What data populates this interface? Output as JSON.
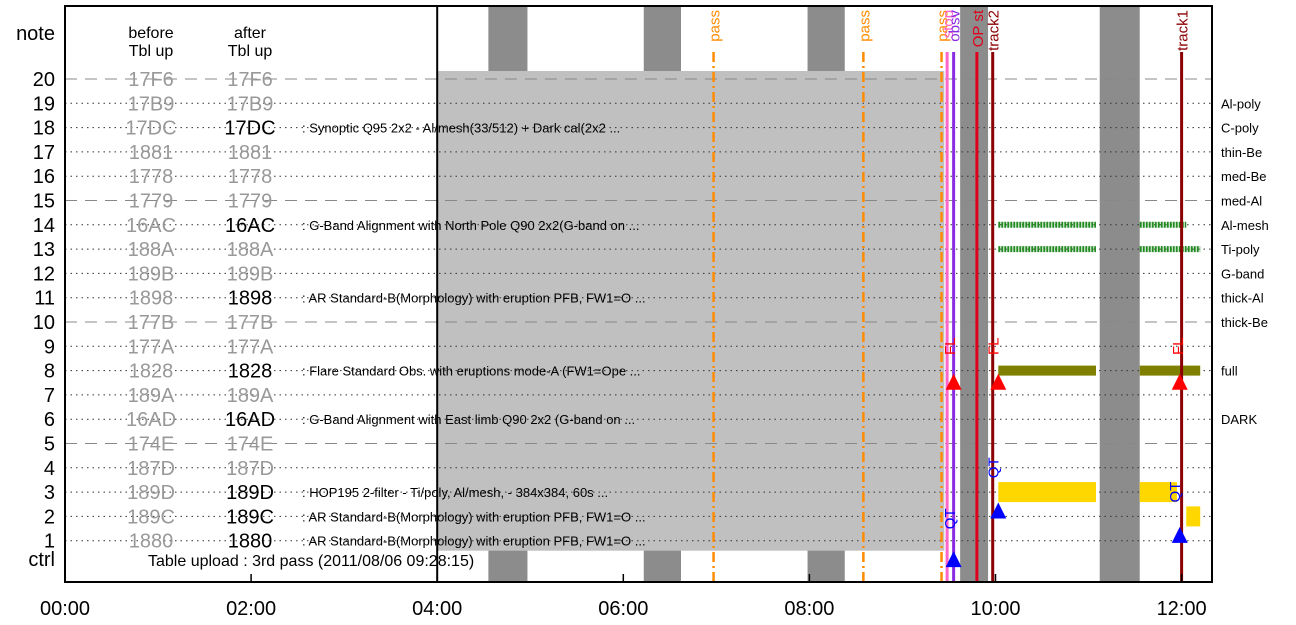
{
  "chart_data": {
    "type": "timeline",
    "title": "",
    "y_axis_label": "note",
    "col_headers": {
      "before": [
        "before",
        "Tbl up"
      ],
      "after": [
        "after",
        "Tbl up"
      ]
    },
    "x_tick_labels": [
      "00:00",
      "02:00",
      "04:00",
      "06:00",
      "08:00",
      "10:00",
      "12:00"
    ],
    "x_range_hours": [
      0,
      12.2
    ],
    "y_range": [
      0,
      21.5
    ],
    "grid_dashed_rows": [
      0,
      5,
      10,
      15,
      20
    ],
    "rows": [
      {
        "note": "20",
        "before": "17F6",
        "after": "17F6",
        "after_active": false,
        "desc": ""
      },
      {
        "note": "19",
        "before": "17B9",
        "after": "17B9",
        "after_active": false,
        "desc": ""
      },
      {
        "note": "18",
        "before": "17DC",
        "after": "17DC",
        "after_active": true,
        "desc": ": Synoptic Q95 2x2 - Al/mesh(33/512) + Dark cal(2x2 ..."
      },
      {
        "note": "17",
        "before": "1881",
        "after": "1881",
        "after_active": false,
        "desc": ""
      },
      {
        "note": "16",
        "before": "1778",
        "after": "1778",
        "after_active": false,
        "desc": ""
      },
      {
        "note": "15",
        "before": "1779",
        "after": "1779",
        "after_active": false,
        "desc": ""
      },
      {
        "note": "14",
        "before": "16AC",
        "after": "16AC",
        "after_active": true,
        "desc": ": G-Band Alignment with North Pole Q90 2x2(G-band on ..."
      },
      {
        "note": "13",
        "before": "188A",
        "after": "188A",
        "after_active": false,
        "desc": ""
      },
      {
        "note": "12",
        "before": "189B",
        "after": "189B",
        "after_active": false,
        "desc": ""
      },
      {
        "note": "11",
        "before": "1898",
        "after": "1898",
        "after_active": true,
        "desc": ": AR Standard-B(Morphology) with eruption PFB, FW1=O ..."
      },
      {
        "note": "10",
        "before": "177B",
        "after": "177B",
        "after_active": false,
        "desc": ""
      },
      {
        "note": "9",
        "before": "177A",
        "after": "177A",
        "after_active": false,
        "desc": ""
      },
      {
        "note": "8",
        "before": "1828",
        "after": "1828",
        "after_active": true,
        "desc": ": Flare Standard Obs. with eruptions mode-A (FW1=Ope ..."
      },
      {
        "note": "7",
        "before": "189A",
        "after": "189A",
        "after_active": false,
        "desc": ""
      },
      {
        "note": "6",
        "before": "16AD",
        "after": "16AD",
        "after_active": true,
        "desc": ": G-Band Alignment with East limb Q90 2x2 (G-band on ..."
      },
      {
        "note": "5",
        "before": "174E",
        "after": "174E",
        "after_active": false,
        "desc": ""
      },
      {
        "note": "4",
        "before": "187D",
        "after": "187D",
        "after_active": false,
        "desc": ""
      },
      {
        "note": "3",
        "before": "189D",
        "after": "189D",
        "after_active": true,
        "desc": ": HOP195 2-filter - Ti/poly, Al/mesh, - 384x384, 60s ..."
      },
      {
        "note": "2",
        "before": "189C",
        "after": "189C",
        "after_active": true,
        "desc": ": AR Standard-B(Morphology) with eruption PFB, FW1=O ..."
      },
      {
        "note": "1",
        "before": "1880",
        "after": "1880",
        "after_active": true,
        "desc": ": AR Standard-B(Morphology) with eruption PFB, FW1=O ..."
      }
    ],
    "ctrl_label": "ctrl",
    "ctrl_text": "Table upload : 3rd pass (2011/08/06 09:28:15)",
    "upload_shade_hours": [
      4.0,
      9.45
    ],
    "shade_bands_hours": [
      [
        4.55,
        4.97
      ],
      [
        6.22,
        6.62
      ],
      [
        7.98,
        8.38
      ],
      [
        9.62,
        9.92
      ],
      [
        11.12,
        11.55
      ]
    ],
    "vertical_markers": [
      {
        "label": "pass",
        "hour": 6.97,
        "color": "#ff8c00",
        "style": "dashdot"
      },
      {
        "label": "pass",
        "hour": 8.58,
        "color": "#ff8c00",
        "style": "dashdot"
      },
      {
        "label": "pass",
        "hour": 9.42,
        "color": "#ff8c00",
        "style": "dashdot"
      },
      {
        "label": "stop",
        "hour": 9.48,
        "color": "#ff66cc",
        "style": "solid"
      },
      {
        "label": "obsv",
        "hour": 9.55,
        "color": "#8a2be2",
        "style": "solid"
      },
      {
        "label": "OP st",
        "hour": 9.8,
        "color": "#e0001b",
        "style": "solid"
      },
      {
        "label": "track2",
        "hour": 9.97,
        "color": "#8b0000",
        "style": "solid"
      },
      {
        "label": "track1",
        "hour": 12.0,
        "color": "#8b0000",
        "style": "solid"
      }
    ],
    "filter_labels": [
      "Al-poly",
      "C-poly",
      "thin-Be",
      "med-Be",
      "med-Al",
      "Al-mesh",
      "Ti-poly",
      "G-band",
      "thick-Al",
      "thick-Be",
      "full",
      "DARK"
    ],
    "filter_label_notes": [
      19,
      18,
      17,
      16,
      15,
      14,
      13,
      12,
      11,
      10,
      8,
      6
    ],
    "bars": [
      {
        "row": 14,
        "start": 10.03,
        "end": 11.08,
        "color": "#228b22",
        "style": "dotted"
      },
      {
        "row": 14,
        "start": 11.55,
        "end": 12.05,
        "color": "#228b22",
        "style": "dotted"
      },
      {
        "row": 13,
        "start": 10.03,
        "end": 11.08,
        "color": "#228b22",
        "style": "dotted"
      },
      {
        "row": 13,
        "start": 11.55,
        "end": 12.2,
        "color": "#228b22",
        "style": "dotted"
      },
      {
        "row": 8,
        "start": 10.03,
        "end": 11.08,
        "color": "#808000",
        "style": "solid"
      },
      {
        "row": 8,
        "start": 11.55,
        "end": 12.2,
        "color": "#808000",
        "style": "solid"
      },
      {
        "row": 3,
        "start": 10.03,
        "end": 11.08,
        "color": "#ffd700",
        "style": "thick"
      },
      {
        "row": 3,
        "start": 11.55,
        "end": 11.95,
        "color": "#ffd700",
        "style": "thick"
      },
      {
        "row": 2,
        "start": 12.05,
        "end": 12.2,
        "color": "#ffd700",
        "style": "thick"
      }
    ],
    "triangles": [
      {
        "hour": 9.55,
        "row": 7.5,
        "color": "#ff0000"
      },
      {
        "hour": 10.03,
        "row": 7.5,
        "color": "#ff0000"
      },
      {
        "hour": 11.98,
        "row": 7.5,
        "color": "#ff0000"
      },
      {
        "hour": 10.03,
        "row": 2.2,
        "color": "#0000ff"
      },
      {
        "hour": 11.98,
        "row": 1.2,
        "color": "#0000ff"
      },
      {
        "hour": 9.55,
        "row": 0.2,
        "color": "#0000ff"
      }
    ],
    "event_labels": [
      {
        "text": "FL",
        "hour": 9.5,
        "row": 9.0,
        "color": "#ff0000"
      },
      {
        "text": "FL",
        "hour": 9.97,
        "row": 9.0,
        "color": "#ff0000"
      },
      {
        "text": "FL",
        "hour": 11.95,
        "row": 9.0,
        "color": "#ff0000"
      },
      {
        "text": "QT",
        "hour": 9.97,
        "row": 4.0,
        "color": "#0000ff"
      },
      {
        "text": "QT",
        "hour": 11.92,
        "row": 3.0,
        "color": "#0000ff"
      },
      {
        "text": "QT",
        "hour": 9.5,
        "row": 1.9,
        "color": "#0000ff"
      }
    ]
  }
}
